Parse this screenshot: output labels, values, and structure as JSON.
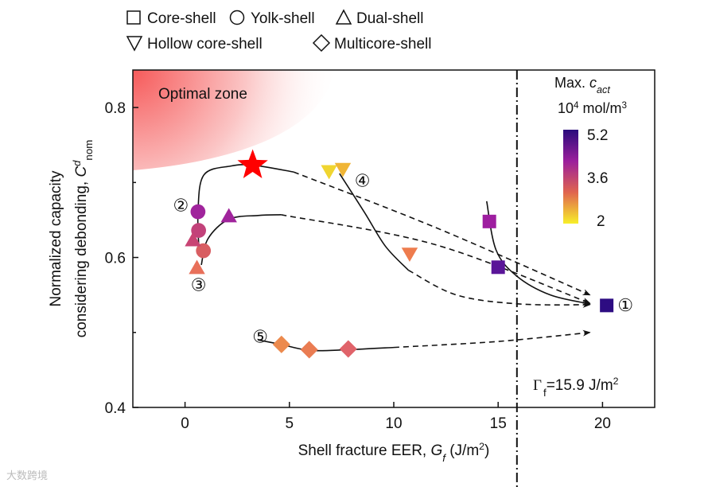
{
  "chart_data": {
    "type": "scatter",
    "xlabel": "Shell fracture EER, G_f (J/m²)",
    "xlabel_parts": {
      "main": "Shell fracture EER, ",
      "var": "G",
      "sub": "f",
      "unit": " (J/m",
      "sup": "2",
      ")": ")"
    },
    "ylabel_line1": "Normalized capacity",
    "ylabel_line2": "considering debonding, C",
    "ylabel_sup": "d",
    "ylabel_sub": "nom",
    "xlim": [
      -2.5,
      22.5
    ],
    "ylim": [
      0.4,
      0.85
    ],
    "xticks": [
      0,
      5,
      10,
      15,
      20
    ],
    "yticks": [
      0.4,
      0.6,
      0.8
    ],
    "ytick_labels": [
      "0.4",
      "0.6",
      "0.8"
    ],
    "legend": [
      {
        "shape": "square",
        "label": "Core-shell"
      },
      {
        "shape": "circle",
        "label": "Yolk-shell"
      },
      {
        "shape": "triangle",
        "label": "Dual-shell"
      },
      {
        "shape": "triangle-down",
        "label": "Hollow core-shell"
      },
      {
        "shape": "diamond",
        "label": "Multicore-shell"
      }
    ],
    "optimal_zone_label": "Optimal zone",
    "threshold": {
      "x": 15.9,
      "label_symbol": "Γ",
      "label_sub": "f",
      "label_text": "=15.9 J/m",
      "label_sup": "2"
    },
    "colorbar": {
      "title1": "Max. ",
      "title_var": "c",
      "title_sub": "act",
      "title2_base": "10",
      "title2_sup": "4",
      "title2_unit": " mol/m",
      "title2_sup2": "3",
      "min": 2,
      "max": 5.2,
      "tick_labels": [
        "5.2",
        "3.6",
        "2"
      ],
      "colors": [
        "#2a0b7c",
        "#9b1f9c",
        "#e0644f",
        "#f7ef2a"
      ]
    },
    "series": [
      {
        "name": "Optimal design",
        "shape": "star",
        "points": [
          {
            "x": 3.24,
            "y": 0.723,
            "color": "#ff0000"
          }
        ]
      },
      {
        "name": "Yolk-shell",
        "shape": "circle",
        "points": [
          {
            "x": 0.62,
            "y": 0.661,
            "color": "#a0249c"
          },
          {
            "x": 0.65,
            "y": 0.636,
            "color": "#c2427a"
          },
          {
            "x": 0.88,
            "y": 0.609,
            "color": "#d85e62"
          }
        ]
      },
      {
        "name": "Dual-shell",
        "shape": "triangle",
        "points": [
          {
            "x": 0.38,
            "y": 0.623,
            "color": "#c84474"
          },
          {
            "x": 0.57,
            "y": 0.586,
            "color": "#e8705a"
          },
          {
            "x": 2.1,
            "y": 0.655,
            "color": "#a0249c"
          }
        ]
      },
      {
        "name": "Hollow core-shell",
        "shape": "triangle-down",
        "points": [
          {
            "x": 6.9,
            "y": 0.715,
            "color": "#f0d530"
          },
          {
            "x": 7.56,
            "y": 0.718,
            "color": "#f0b535"
          },
          {
            "x": 10.76,
            "y": 0.605,
            "color": "#ee7c4e"
          }
        ]
      },
      {
        "name": "Core-shell",
        "shape": "square",
        "points": [
          {
            "x": 14.58,
            "y": 0.648,
            "color": "#9e1ea0"
          },
          {
            "x": 15.0,
            "y": 0.587,
            "color": "#5a1598"
          },
          {
            "x": 20.2,
            "y": 0.536,
            "color": "#2d0c82"
          }
        ]
      },
      {
        "name": "Multicore-shell",
        "shape": "diamond",
        "points": [
          {
            "x": 4.62,
            "y": 0.484,
            "color": "#ec8a4e"
          },
          {
            "x": 5.95,
            "y": 0.477,
            "color": "#ea7c52"
          },
          {
            "x": 7.82,
            "y": 0.478,
            "color": "#e0636a"
          }
        ]
      }
    ],
    "curves": [
      {
        "style": "solid",
        "pts": [
          [
            0.68,
            0.605
          ],
          [
            0.62,
            0.66
          ],
          [
            0.9,
            0.71
          ],
          [
            2.2,
            0.722
          ],
          [
            3.3,
            0.723
          ],
          [
            5.2,
            0.714
          ]
        ]
      },
      {
        "style": "dashed",
        "arrow": true,
        "pts": [
          [
            5.2,
            0.714
          ],
          [
            12,
            0.64
          ],
          [
            19.4,
            0.55
          ]
        ]
      },
      {
        "style": "solid",
        "pts": [
          [
            0.78,
            0.59
          ],
          [
            1.1,
            0.625
          ],
          [
            2.1,
            0.651
          ],
          [
            3.5,
            0.656
          ],
          [
            4.6,
            0.657
          ]
        ]
      },
      {
        "style": "dashed",
        "arrow": true,
        "pts": [
          [
            4.6,
            0.657
          ],
          [
            12,
            0.617
          ],
          [
            19.4,
            0.539
          ]
        ]
      },
      {
        "style": "solid",
        "pts": [
          [
            7.4,
            0.712
          ],
          [
            8.6,
            0.66
          ],
          [
            9.6,
            0.615
          ],
          [
            10.7,
            0.583
          ]
        ]
      },
      {
        "style": "dashed",
        "arrow": true,
        "pts": [
          [
            10.7,
            0.583
          ],
          [
            13,
            0.55
          ],
          [
            16,
            0.538
          ],
          [
            19.4,
            0.537
          ]
        ]
      },
      {
        "style": "solid",
        "arrow": true,
        "pts": [
          [
            14.45,
            0.675
          ],
          [
            14.9,
            0.61
          ],
          [
            15.9,
            0.575
          ],
          [
            17.5,
            0.55
          ],
          [
            19.4,
            0.538
          ]
        ]
      },
      {
        "style": "solid",
        "pts": [
          [
            3.5,
            0.49
          ],
          [
            4.6,
            0.484
          ],
          [
            6,
            0.476
          ],
          [
            7.8,
            0.477
          ],
          [
            10,
            0.48
          ]
        ]
      },
      {
        "style": "dashed",
        "arrow": true,
        "pts": [
          [
            10,
            0.48
          ],
          [
            15,
            0.488
          ],
          [
            19.4,
            0.5
          ]
        ]
      }
    ],
    "labels": [
      {
        "text": "①",
        "x": 21.1,
        "y": 0.536
      },
      {
        "text": "②",
        "x": -0.2,
        "y": 0.669
      },
      {
        "text": "③",
        "x": 0.65,
        "y": 0.563
      },
      {
        "text": "④",
        "x": 8.5,
        "y": 0.702
      },
      {
        "text": "⑤",
        "x": 3.6,
        "y": 0.494
      }
    ]
  },
  "watermark": "大数跨境"
}
